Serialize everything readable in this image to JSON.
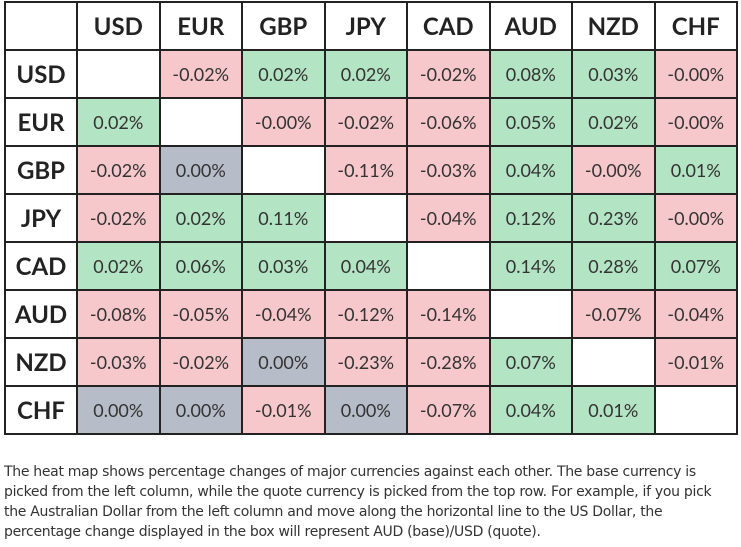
{
  "table": {
    "columns": [
      "USD",
      "EUR",
      "GBP",
      "JPY",
      "CAD",
      "AUD",
      "NZD",
      "CHF"
    ],
    "rows": [
      {
        "label": "USD",
        "cells": [
          null,
          "-0.02%",
          "0.02%",
          "0.02%",
          "-0.02%",
          "0.08%",
          "0.03%",
          "-0.00%"
        ]
      },
      {
        "label": "EUR",
        "cells": [
          "0.02%",
          null,
          "-0.00%",
          "-0.02%",
          "-0.06%",
          "0.05%",
          "0.02%",
          "-0.00%"
        ]
      },
      {
        "label": "GBP",
        "cells": [
          "-0.02%",
          "0.00%",
          null,
          "-0.11%",
          "-0.03%",
          "0.04%",
          "-0.00%",
          "0.01%"
        ]
      },
      {
        "label": "JPY",
        "cells": [
          "-0.02%",
          "0.02%",
          "0.11%",
          null,
          "-0.04%",
          "0.12%",
          "0.23%",
          "-0.00%"
        ]
      },
      {
        "label": "CAD",
        "cells": [
          "0.02%",
          "0.06%",
          "0.03%",
          "0.04%",
          null,
          "0.14%",
          "0.28%",
          "0.07%"
        ]
      },
      {
        "label": "AUD",
        "cells": [
          "-0.08%",
          "-0.05%",
          "-0.04%",
          "-0.12%",
          "-0.14%",
          null,
          "-0.07%",
          "-0.04%"
        ]
      },
      {
        "label": "NZD",
        "cells": [
          "-0.03%",
          "-0.02%",
          "0.00%",
          "-0.23%",
          "-0.28%",
          "0.07%",
          null,
          "-0.01%"
        ]
      },
      {
        "label": "CHF",
        "cells": [
          "0.00%",
          "0.00%",
          "-0.01%",
          "0.00%",
          "-0.07%",
          "0.04%",
          "0.01%",
          null
        ]
      }
    ]
  },
  "description": "The heat map shows percentage changes of major currencies against each other. The base currency is picked from the left column, while the quote currency is picked from the top row. For example, if you pick the Australian Dollar from the left column and move along the horizontal line to the US Dollar, the percentage change displayed in the box will represent AUD (base)/USD (quote)."
}
